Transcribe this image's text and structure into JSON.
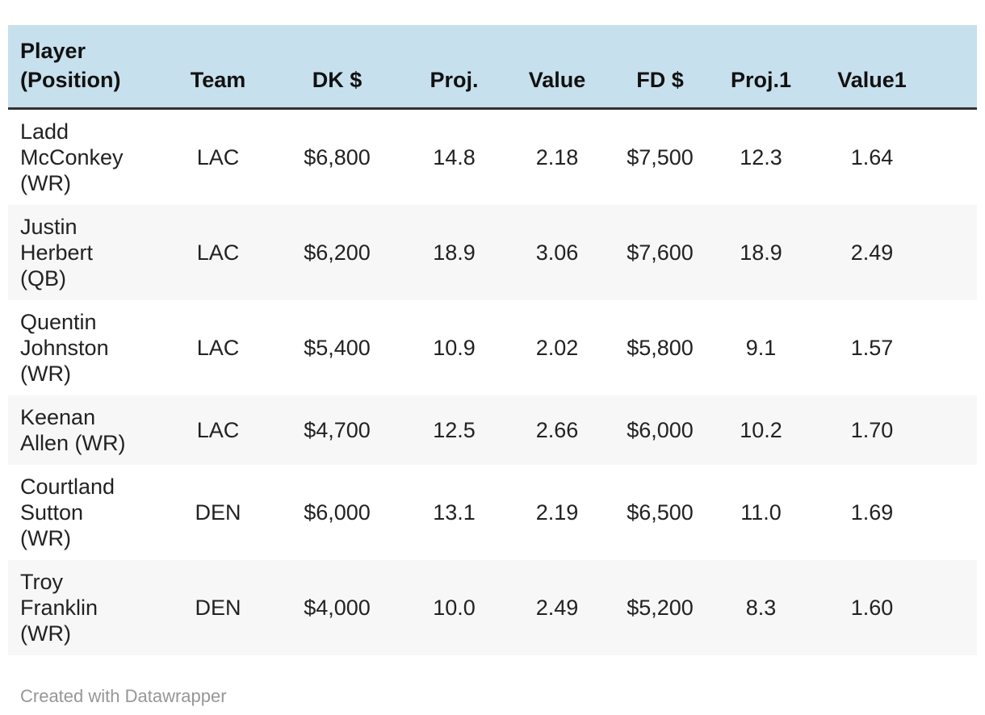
{
  "table": {
    "keys": [
      "player",
      "team",
      "dk-salary",
      "dk-proj",
      "dk-value",
      "fd-salary",
      "fd-proj",
      "fd-value"
    ],
    "header": [
      "Player\n(Position)",
      "Team",
      "DK $",
      "Proj.",
      "Value",
      "FD $",
      "Proj.1",
      "Value1"
    ],
    "rows": [
      [
        "Ladd\nMcConkey\n(WR)",
        "LAC",
        "$6,800",
        "14.8",
        "2.18",
        "$7,500",
        "12.3",
        "1.64"
      ],
      [
        "Justin\nHerbert\n(QB)",
        "LAC",
        "$6,200",
        "18.9",
        "3.06",
        "$7,600",
        "18.9",
        "2.49"
      ],
      [
        "Quentin\nJohnston\n(WR)",
        "LAC",
        "$5,400",
        "10.9",
        "2.02",
        "$5,800",
        "9.1",
        "1.57"
      ],
      [
        "Keenan\nAllen (WR)",
        "LAC",
        "$4,700",
        "12.5",
        "2.66",
        "$6,000",
        "10.2",
        "1.70"
      ],
      [
        "Courtland\nSutton\n(WR)",
        "DEN",
        "$6,000",
        "13.1",
        "2.19",
        "$6,500",
        "11.0",
        "1.69"
      ],
      [
        "Troy\nFranklin\n(WR)",
        "DEN",
        "$4,000",
        "10.0",
        "2.49",
        "$5,200",
        "8.3",
        "1.60"
      ]
    ]
  },
  "chart_data": {
    "type": "table",
    "columns": [
      "Player (Position)",
      "Team",
      "DK $",
      "Proj.",
      "Value",
      "FD $",
      "Proj.1",
      "Value1"
    ],
    "rows": [
      [
        "Ladd McConkey (WR)",
        "LAC",
        6800,
        14.8,
        2.18,
        7500,
        12.3,
        1.64
      ],
      [
        "Justin Herbert (QB)",
        "LAC",
        6200,
        18.9,
        3.06,
        7600,
        18.9,
        2.49
      ],
      [
        "Quentin Johnston (WR)",
        "LAC",
        5400,
        10.9,
        2.02,
        5800,
        9.1,
        1.57
      ],
      [
        "Keenan Allen (WR)",
        "LAC",
        4700,
        12.5,
        2.66,
        6000,
        10.2,
        1.7
      ],
      [
        "Courtland Sutton (WR)",
        "DEN",
        6000,
        13.1,
        2.19,
        6500,
        11.0,
        1.69
      ],
      [
        "Troy Franklin (WR)",
        "DEN",
        4000,
        10.0,
        2.49,
        5200,
        8.3,
        1.6
      ]
    ],
    "title": "",
    "legend_position": "none",
    "grid": false
  },
  "footer": {
    "credit": "Created with Datawrapper"
  },
  "colors": {
    "header_bg": "#c7e0ed",
    "header_border": "#333333",
    "row_alt_bg": "#f7f7f7",
    "text": "#222222",
    "header_text": "#111111",
    "footer_text": "#969696",
    "page_bg": "#ffffff"
  }
}
